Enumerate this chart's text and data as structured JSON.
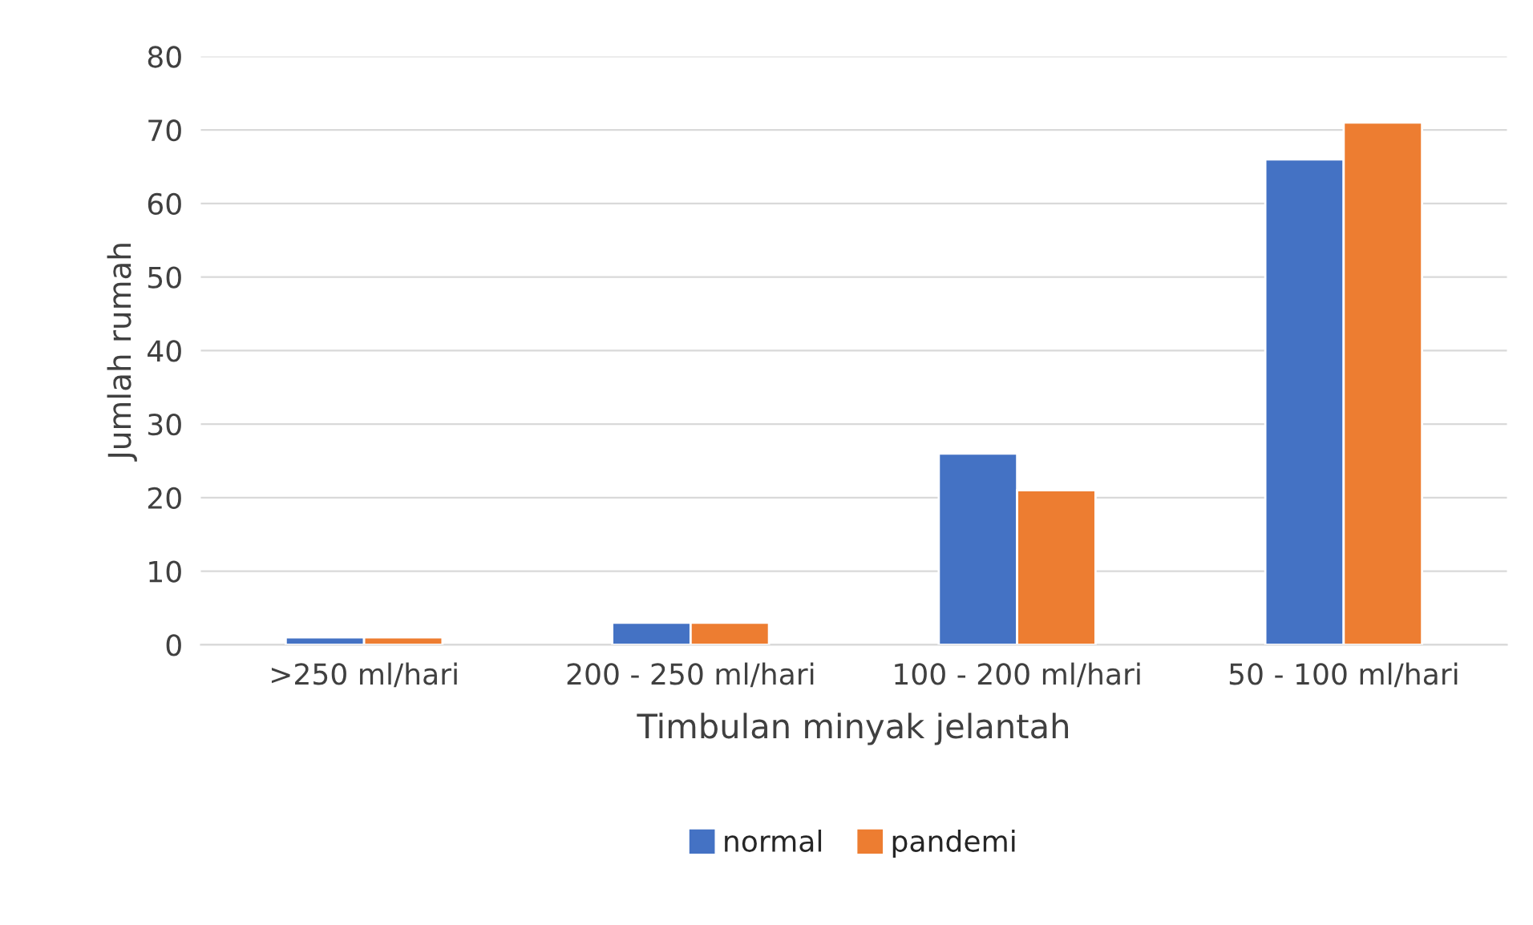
{
  "chart_data": {
    "type": "bar",
    "xlabel": "Timbulan minyak jelantah",
    "ylabel": "Jumlah rumah",
    "categories": [
      ">250 ml/hari",
      "200 - 250 ml/hari",
      "100 - 200 ml/hari",
      "50 - 100 ml/hari"
    ],
    "series": [
      {
        "name": "normal",
        "color": "#4472c4",
        "values": [
          1,
          3,
          26,
          66
        ]
      },
      {
        "name": "pandemi",
        "color": "#ed7d31",
        "values": [
          1,
          3,
          21,
          71
        ]
      }
    ],
    "ylim": [
      0,
      80
    ],
    "yticks": [
      0,
      10,
      20,
      30,
      40,
      50,
      60,
      70,
      80
    ],
    "grid": "y",
    "legend": "bottom"
  }
}
